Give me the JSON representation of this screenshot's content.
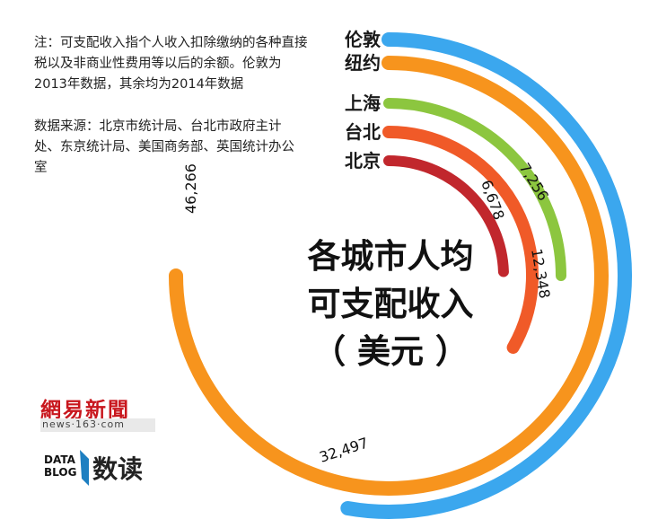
{
  "notes": {
    "note1": "注：可支配收入指个人收入扣除缴纳的各种直接税以及非商业性费用等以后的余额。伦敦为2013年数据，其余均为2014年数据",
    "note2": "数据来源：北京市统计局、台北市政府主计处、东京统计局、美国商务部、英国统计办公室"
  },
  "title": {
    "line1": "各城市人均",
    "line2": "可支配收入",
    "line3": "（ 美元 ）"
  },
  "logo": {
    "netease_news": "網易新聞",
    "netease_url": "news·163·com",
    "datablog_1": "DATA",
    "datablog_2": "BLOG",
    "datablog_read": "数读"
  },
  "chart_data": {
    "type": "radial-bar",
    "title": "各城市人均可支配收入（美元）",
    "unit": "美元",
    "categories": [
      "伦敦",
      "纽约",
      "上海",
      "台北",
      "北京"
    ],
    "values": [
      null,
      null,
      7256,
      12348,
      6678
    ],
    "value_labels": [
      "32,497",
      "46,266",
      "7,256",
      "12,348",
      "6,678"
    ],
    "colors": {
      "伦敦": "#3ba7ee",
      "纽约": "#f7941d",
      "上海": "#8cc63f",
      "台北": "#f05a28",
      "北京": "#c1272d"
    }
  }
}
